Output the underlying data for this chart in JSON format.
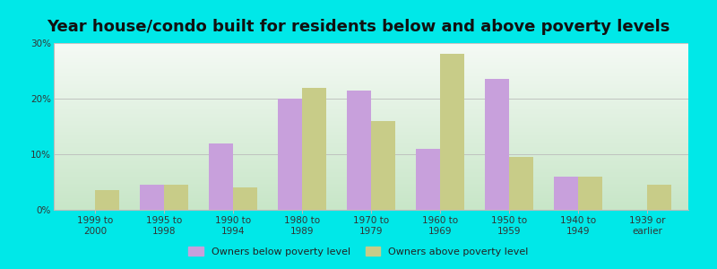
{
  "title": "Year house/condo built for residents below and above poverty levels",
  "categories": [
    "1999 to\n2000",
    "1995 to\n1998",
    "1990 to\n1994",
    "1980 to\n1989",
    "1970 to\n1979",
    "1960 to\n1969",
    "1950 to\n1959",
    "1940 to\n1949",
    "1939 or\nearlier"
  ],
  "below_poverty": [
    0,
    4.5,
    12.0,
    20.0,
    21.5,
    11.0,
    23.5,
    6.0,
    0
  ],
  "above_poverty": [
    3.5,
    4.5,
    4.0,
    22.0,
    16.0,
    28.0,
    9.5,
    6.0,
    4.5
  ],
  "below_color": "#c8a0dc",
  "above_color": "#c8cc88",
  "outer_bg": "#00e8e8",
  "ylim": [
    0,
    30
  ],
  "yticks": [
    0,
    10,
    20,
    30
  ],
  "title_fontsize": 13,
  "tick_fontsize": 7.5,
  "legend_below_label": "Owners below poverty level",
  "legend_above_label": "Owners above poverty level",
  "bar_width": 0.35,
  "grid_color": "#bbbbbb",
  "bg_top_color": "#f5faf5",
  "bg_bottom_color": "#d8f0d8"
}
